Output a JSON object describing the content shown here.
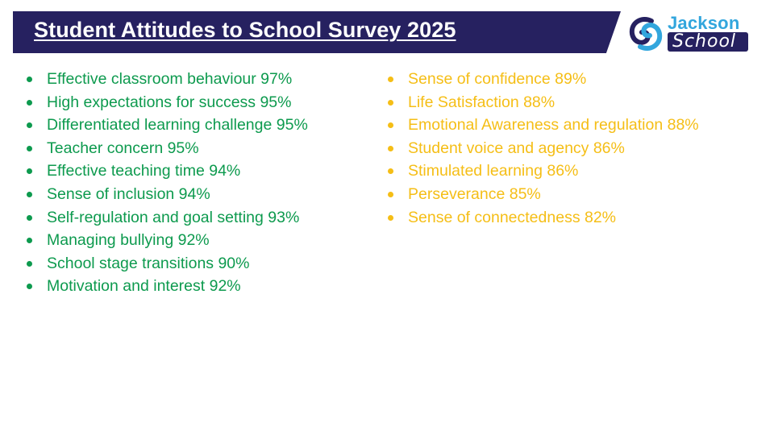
{
  "header": {
    "title": "Student Attitudes to School Survey 2025",
    "colors": {
      "banner": "#262160",
      "title_text": "#ffffff"
    }
  },
  "logo": {
    "line1": "Jackson",
    "line2": "School",
    "colors": {
      "jackson": "#32a6dd",
      "school_bg": "#262160"
    }
  },
  "strengths": {
    "color": "#0d9a4e",
    "items": [
      "Effective classroom behaviour 97%",
      "High expectations for success 95%",
      "Differentiated learning challenge 95%",
      "Teacher concern 95%",
      "Effective teaching time 94%",
      "Sense of inclusion 94%",
      "Self-regulation and goal setting 93%",
      "Managing bullying 92%",
      "School stage transitions 90%",
      "Motivation and interest 92%"
    ]
  },
  "other_results": {
    "color": "#f5be16",
    "items": [
      "Sense of confidence 89%",
      "Life Satisfaction 88%",
      "Emotional Awareness and regulation 88%",
      "Student voice and agency 86%",
      "Stimulated learning 86%",
      "Perseverance 85%",
      "Sense of connectedness 82%"
    ]
  }
}
